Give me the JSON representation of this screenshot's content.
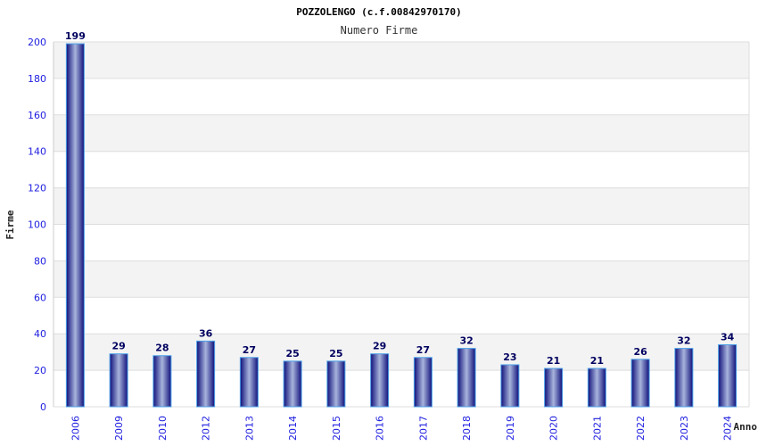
{
  "chart_data": {
    "type": "bar",
    "title": "POZZOLENGO (c.f.00842970170)",
    "subtitle": "Numero Firme",
    "xlabel": "Anno",
    "ylabel": "Firme",
    "ylim": [
      0,
      200
    ],
    "yticks": [
      0,
      20,
      40,
      60,
      80,
      100,
      120,
      140,
      160,
      180,
      200
    ],
    "grid": true,
    "categories": [
      "2006",
      "2009",
      "2010",
      "2012",
      "2013",
      "2014",
      "2015",
      "2016",
      "2017",
      "2018",
      "2019",
      "2020",
      "2021",
      "2022",
      "2023",
      "2024"
    ],
    "values": [
      199,
      29,
      28,
      36,
      27,
      25,
      25,
      29,
      27,
      32,
      23,
      21,
      21,
      26,
      32,
      34
    ],
    "colors": {
      "bar_dark": "#10107a",
      "bar_light": "#a8b4dc",
      "bar_edge": "#4aa0e8",
      "band": "#f3f3f3"
    }
  }
}
